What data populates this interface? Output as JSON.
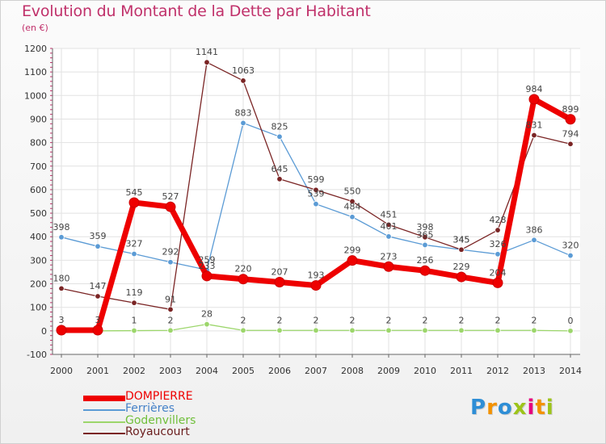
{
  "chart_data": {
    "type": "line",
    "title": "Evolution du Montant de la Dette par Habitant",
    "subtitle": "(en €)",
    "xlabel": "",
    "ylabel": "",
    "ylim": [
      -100,
      1200
    ],
    "yticks": [
      -100,
      0,
      100,
      200,
      300,
      400,
      500,
      600,
      700,
      800,
      900,
      1000,
      1100,
      1200
    ],
    "categories": [
      "2000",
      "2001",
      "2002",
      "2003",
      "2004",
      "2005",
      "2006",
      "2007",
      "2008",
      "2009",
      "2010",
      "2011",
      "2012",
      "2013",
      "2014"
    ],
    "grid": true,
    "legend_position": "bottom-left",
    "series": [
      {
        "name": "DOMPIERRE",
        "color": "#ee0000",
        "legend_color": "#ee0000",
        "values": [
          3,
          3,
          545,
          527,
          233,
          220,
          207,
          193,
          299,
          273,
          256,
          229,
          204,
          984,
          899
        ],
        "labels": [
          "3",
          "3",
          "545",
          "527",
          "233",
          "220",
          "207",
          "193",
          "299",
          "273",
          "256",
          "229",
          "204",
          "984",
          "899"
        ]
      },
      {
        "name": "Ferrières",
        "color": "#5b9bd5",
        "legend_color": "#4682c8",
        "values": [
          398,
          359,
          327,
          292,
          259,
          883,
          825,
          539,
          484,
          401,
          365,
          345,
          326,
          386,
          320
        ],
        "labels": [
          "398",
          "359",
          "327",
          "292",
          "259",
          "883",
          "825",
          "539",
          "484",
          "401",
          "365",
          "345",
          "326",
          "386",
          "320"
        ]
      },
      {
        "name": "Godenvillers",
        "color": "#9cd66b",
        "legend_color": "#6fbf3a",
        "values": [
          0,
          0,
          1,
          2,
          28,
          2,
          2,
          2,
          2,
          2,
          2,
          2,
          2,
          2,
          0
        ],
        "labels": [
          "",
          "",
          "1",
          "2",
          "28",
          "2",
          "2",
          "2",
          "2",
          "2",
          "2",
          "2",
          "2",
          "2",
          "0"
        ]
      },
      {
        "name": "Royaucourt",
        "color": "#7a2424",
        "legend_color": "#6b1e1e",
        "values": [
          180,
          147,
          119,
          91,
          1141,
          1063,
          645,
          599,
          550,
          451,
          398,
          345,
          428,
          831,
          794
        ],
        "labels": [
          "180",
          "147",
          "119",
          "91",
          "1141",
          "1063",
          "645",
          "599",
          "550",
          "451",
          "398",
          "345",
          "428",
          "831",
          "794"
        ]
      }
    ]
  },
  "brand": {
    "letters": [
      "P",
      "r",
      "o",
      "x",
      "i",
      "t",
      "i"
    ],
    "colors": [
      "#2e8ed6",
      "#f39200",
      "#2e8ed6",
      "#9dc41a",
      "#e6007e",
      "#f39200",
      "#9dc41a"
    ]
  }
}
